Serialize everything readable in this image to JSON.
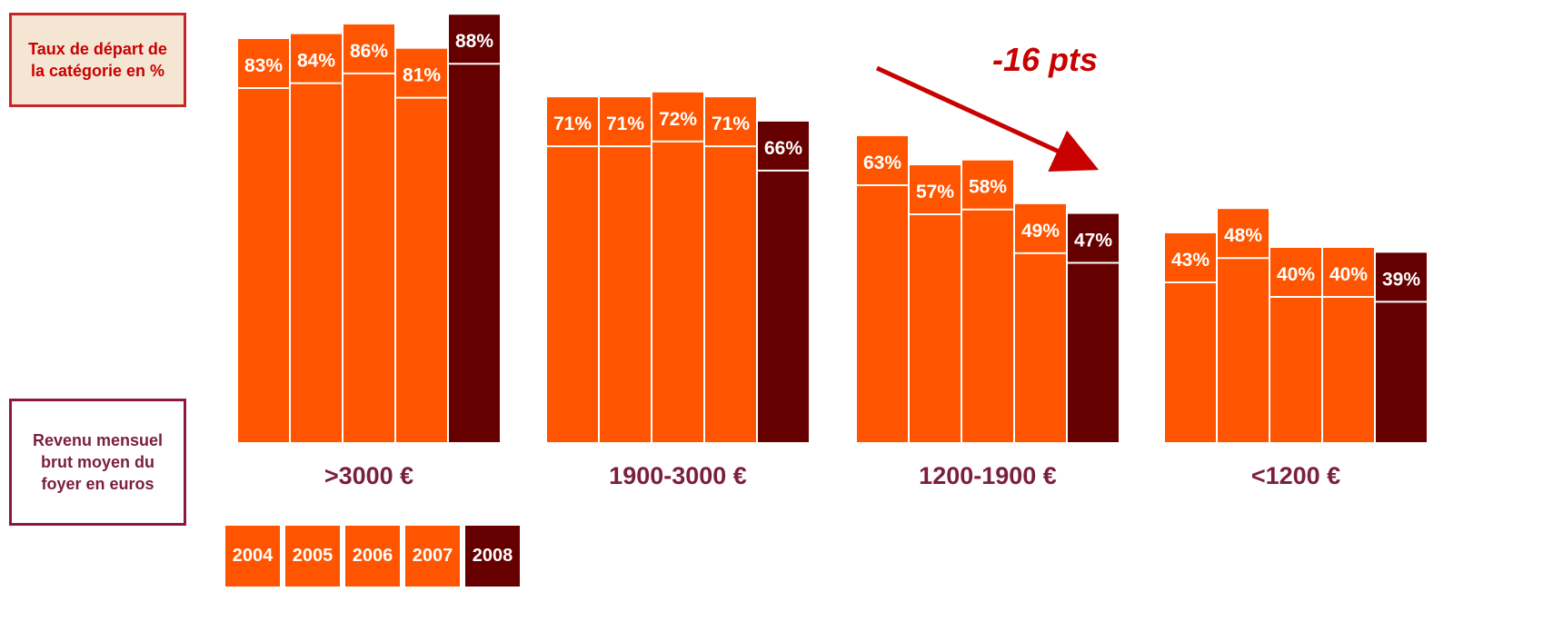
{
  "labels": {
    "rate_box": "Taux de départ de la catégorie en %",
    "income_box": "Revenu mensuel  brut moyen du foyer en euros",
    "annotation": "-16 pts"
  },
  "colors": {
    "year_bar": "#ff5500",
    "latest_bar": "#660000",
    "group_label": "#7a1f3d",
    "arrow": "#c80000"
  },
  "chart_data": {
    "type": "bar",
    "categories": [
      ">3000 €",
      "1900-3000 €",
      "1200-1900 €",
      "<1200 €"
    ],
    "series": [
      {
        "name": "2004",
        "values": [
          83,
          71,
          63,
          43
        ]
      },
      {
        "name": "2005",
        "values": [
          84,
          71,
          57,
          48
        ]
      },
      {
        "name": "2006",
        "values": [
          86,
          72,
          58,
          40
        ]
      },
      {
        "name": "2007",
        "values": [
          81,
          71,
          49,
          40
        ]
      },
      {
        "name": "2008",
        "values": [
          88,
          66,
          47,
          39
        ]
      }
    ],
    "data_labels": [
      [
        "83%",
        "84%",
        "86%",
        "81%",
        "88%"
      ],
      [
        "71%",
        "71%",
        "72%",
        "71%",
        "66%"
      ],
      [
        "63%",
        "57%",
        "58%",
        "49%",
        "47%"
      ],
      [
        "43%",
        "48%",
        "40%",
        "40%",
        "39%"
      ]
    ],
    "ylim": [
      0,
      100
    ],
    "grid": false,
    "legend": "bottom-left"
  }
}
